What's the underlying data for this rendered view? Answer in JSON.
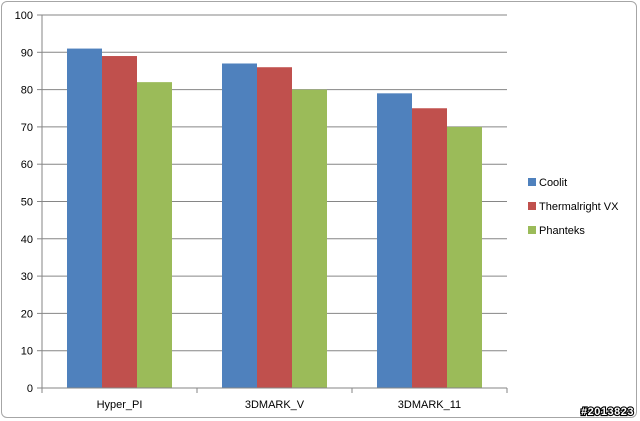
{
  "chart_data": {
    "type": "bar",
    "title": "",
    "xlabel": "",
    "ylabel": "",
    "categories": [
      "Hyper_PI",
      "3DMARK_V",
      "3DMARK_11"
    ],
    "series": [
      {
        "name": "Coolit",
        "values": [
          91,
          87,
          79
        ],
        "color": "#4f81bd"
      },
      {
        "name": "Thermalright VX",
        "values": [
          89,
          86,
          75
        ],
        "color": "#c0504d"
      },
      {
        "name": "Phanteks",
        "values": [
          82,
          80,
          70
        ],
        "color": "#9bbb59"
      }
    ],
    "ylim": [
      0,
      100
    ],
    "yticks": [
      0,
      10,
      20,
      30,
      40,
      50,
      60,
      70,
      80,
      90,
      100
    ],
    "grid": true,
    "legend_position": "right"
  },
  "watermark": "#2013823"
}
